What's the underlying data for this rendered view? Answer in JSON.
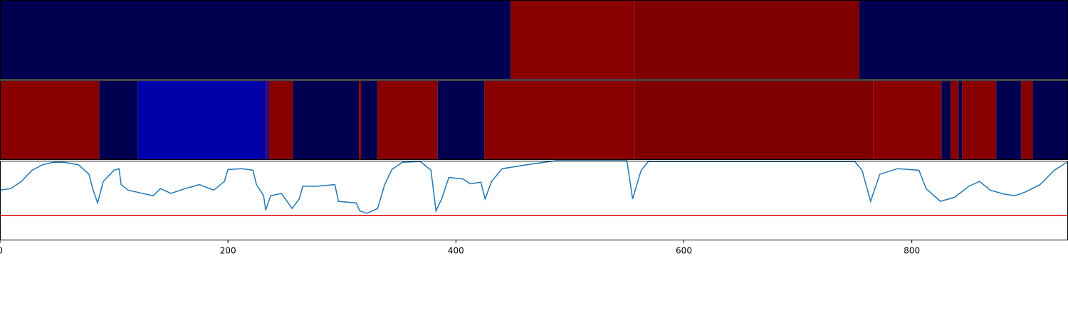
{
  "chart_data": [
    {
      "type": "strip",
      "xlim": [
        0,
        937
      ],
      "edges": [
        0,
        448,
        557,
        754,
        937
      ],
      "colors": [
        "#000050",
        "#880000",
        "#800000",
        "#000050"
      ]
    },
    {
      "type": "strip",
      "xlim": [
        0,
        937
      ],
      "edges": [
        0,
        87,
        121,
        233,
        234,
        236,
        257,
        315,
        317,
        331,
        384,
        425,
        557,
        766,
        826,
        834,
        841,
        844,
        874,
        896,
        906,
        937
      ],
      "colors": [
        "#880000",
        "#000050",
        "#0000aa",
        "#880000",
        "#0000aa",
        "#880000",
        "#000050",
        "#880000",
        "#000050",
        "#880000",
        "#000050",
        "#880000",
        "#7f0000",
        "#880000",
        "#000050",
        "#880000",
        "#000050",
        "#880000",
        "#000050",
        "#880000",
        "#000050"
      ]
    },
    {
      "type": "line",
      "xlim": [
        0,
        937
      ],
      "ylim": [
        0,
        1
      ],
      "xticks": [
        0,
        200,
        400,
        600,
        800
      ],
      "threshold": 0.31,
      "threshold_color": "#dd0000",
      "series": [
        {
          "color": "#1f77b4",
          "x": [
            0,
            9.4,
            18.8,
            28.1,
            37.5,
            46.9,
            56.3,
            68.8,
            78.1,
            81.3,
            85.6,
            90.6,
            100,
            104.4,
            106.3,
            112.5,
            125,
            134.4,
            140.6,
            150,
            162.5,
            175,
            187.5,
            196.9,
            200,
            212.5,
            221.9,
            225,
            231.3,
            233.1,
            237.5,
            246.9,
            256.3,
            262.5,
            265.6,
            278.1,
            293.8,
            296.9,
            312.5,
            315.6,
            321.9,
            331.3,
            337.5,
            343.8,
            353.1,
            368.8,
            378.1,
            382.5,
            387.5,
            393.8,
            406.3,
            412.5,
            421.9,
            425.6,
            431.3,
            440.6,
            462.5,
            487.5,
            550,
            555,
            562.5,
            568.8,
            750,
            756.3,
            763.8,
            771.9,
            787.5,
            806.3,
            812.5,
            825,
            837.5,
            850,
            859.4,
            868.8,
            881.3,
            890.6,
            900,
            912.5,
            925,
            936
          ],
          "values": [
            0.63,
            0.65,
            0.74,
            0.88,
            0.95,
            0.98,
            0.98,
            0.95,
            0.83,
            0.65,
            0.47,
            0.74,
            0.88,
            0.9,
            0.7,
            0.63,
            0.59,
            0.56,
            0.65,
            0.59,
            0.65,
            0.7,
            0.63,
            0.74,
            0.89,
            0.9,
            0.88,
            0.7,
            0.56,
            0.38,
            0.56,
            0.59,
            0.4,
            0.52,
            0.68,
            0.68,
            0.7,
            0.49,
            0.47,
            0.37,
            0.34,
            0.4,
            0.7,
            0.89,
            0.98,
            0.99,
            0.88,
            0.37,
            0.52,
            0.79,
            0.77,
            0.71,
            0.73,
            0.52,
            0.74,
            0.9,
            0.95,
            1.0,
            1.0,
            0.52,
            0.88,
            0.99,
            0.99,
            0.88,
            0.49,
            0.83,
            0.9,
            0.88,
            0.65,
            0.49,
            0.54,
            0.68,
            0.74,
            0.63,
            0.58,
            0.56,
            0.61,
            0.7,
            0.88,
            0.98
          ]
        }
      ]
    }
  ]
}
